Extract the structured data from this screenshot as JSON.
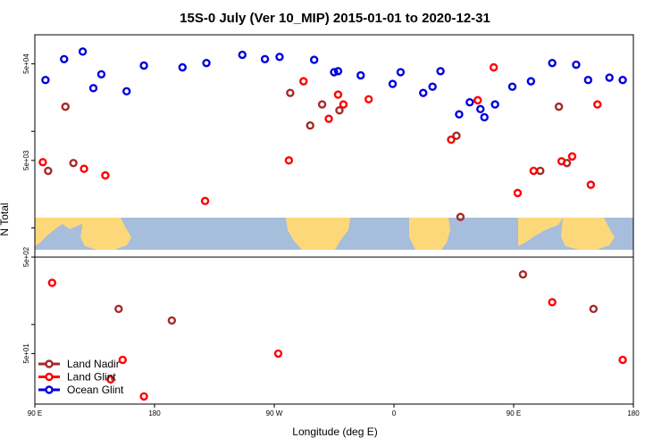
{
  "chart_data": {
    "type": "scatter",
    "title": "15S-0 July (Ver 10_MIP)   2015-01-01 to 2020-12-31",
    "xlabel": "Longitude (deg E)",
    "ylabel": "N Total",
    "x_ticks": [
      {
        "value": 90,
        "label": "90 E"
      },
      {
        "value": 180,
        "label": "180"
      },
      {
        "value": 270,
        "label": "90 W"
      },
      {
        "value": 360,
        "label": "0"
      },
      {
        "value": 450,
        "label": "90 E"
      },
      {
        "value": 540,
        "label": "180"
      }
    ],
    "xlim": [
      90,
      540
    ],
    "y_scale": "log",
    "ylim": [
      15,
      100000
    ],
    "y_ticks": [
      {
        "value": 50,
        "label": "5e+01"
      },
      {
        "value": 500,
        "label": "5e+02"
      },
      {
        "value": 5000,
        "label": "5e+03"
      },
      {
        "value": 50000,
        "label": "5e+04"
      }
    ],
    "y_minor_ticks": [
      100,
      1000,
      10000
    ],
    "horizontal_line_y": 500,
    "map_band": {
      "y_top": 2600,
      "y_bottom": 1000,
      "ocean_color": "#a6bddb",
      "land_color": "#fdd87a"
    },
    "grid": false,
    "legend_position": "bottom-left",
    "series": [
      {
        "name": "Land Nadir",
        "color": "#a52a2a",
        "points": [
          [
            100,
            3900
          ],
          [
            113,
            18000
          ],
          [
            119,
            4700
          ],
          [
            153,
            145
          ],
          [
            193,
            110
          ],
          [
            282,
            25000
          ],
          [
            297,
            11500
          ],
          [
            306,
            19000
          ],
          [
            319,
            16500
          ],
          [
            407,
            9000
          ],
          [
            410,
            1300
          ],
          [
            457,
            330
          ],
          [
            470,
            3900
          ],
          [
            484,
            18000
          ],
          [
            490,
            4700
          ],
          [
            510,
            145
          ]
        ]
      },
      {
        "name": "Land Glint",
        "color": "#ff0000",
        "points": [
          [
            96,
            4800
          ],
          [
            103,
            270
          ],
          [
            127,
            4100
          ],
          [
            143,
            3500
          ],
          [
            147,
            27
          ],
          [
            156,
            43
          ],
          [
            172,
            18
          ],
          [
            218,
            1900
          ],
          [
            273,
            50
          ],
          [
            281,
            5000
          ],
          [
            292,
            33000
          ],
          [
            311,
            13500
          ],
          [
            318,
            24000
          ],
          [
            322,
            19000
          ],
          [
            341,
            21500
          ],
          [
            403,
            8200
          ],
          [
            423,
            21000
          ],
          [
            435,
            46000
          ],
          [
            453,
            2300
          ],
          [
            465,
            3900
          ],
          [
            479,
            170
          ],
          [
            486,
            4900
          ],
          [
            494,
            5500
          ],
          [
            508,
            2800
          ],
          [
            513,
            19000
          ],
          [
            532,
            43
          ]
        ]
      },
      {
        "name": "Ocean Glint",
        "color": "#0000dd",
        "points": [
          [
            98,
            34000
          ],
          [
            112,
            56000
          ],
          [
            126,
            67000
          ],
          [
            134,
            28000
          ],
          [
            140,
            39000
          ],
          [
            159,
            26000
          ],
          [
            172,
            48000
          ],
          [
            201,
            46000
          ],
          [
            219,
            51000
          ],
          [
            246,
            62000
          ],
          [
            263,
            56000
          ],
          [
            274,
            59000
          ],
          [
            300,
            55000
          ],
          [
            315,
            41000
          ],
          [
            318,
            42000
          ],
          [
            335,
            38000
          ],
          [
            359,
            31000
          ],
          [
            365,
            41000
          ],
          [
            382,
            25000
          ],
          [
            389,
            29000
          ],
          [
            395,
            42000
          ],
          [
            409,
            15000
          ],
          [
            417,
            20000
          ],
          [
            425,
            17000
          ],
          [
            428,
            14000
          ],
          [
            436,
            19000
          ],
          [
            449,
            29000
          ],
          [
            463,
            33000
          ],
          [
            479,
            51000
          ],
          [
            497,
            49000
          ],
          [
            506,
            34000
          ],
          [
            522,
            36000
          ],
          [
            532,
            34000
          ]
        ]
      }
    ],
    "legend": [
      {
        "label": "Land Nadir",
        "color": "#a52a2a"
      },
      {
        "label": "Land Glint",
        "color": "#ff0000"
      },
      {
        "label": "Ocean Glint",
        "color": "#0000dd"
      }
    ]
  }
}
